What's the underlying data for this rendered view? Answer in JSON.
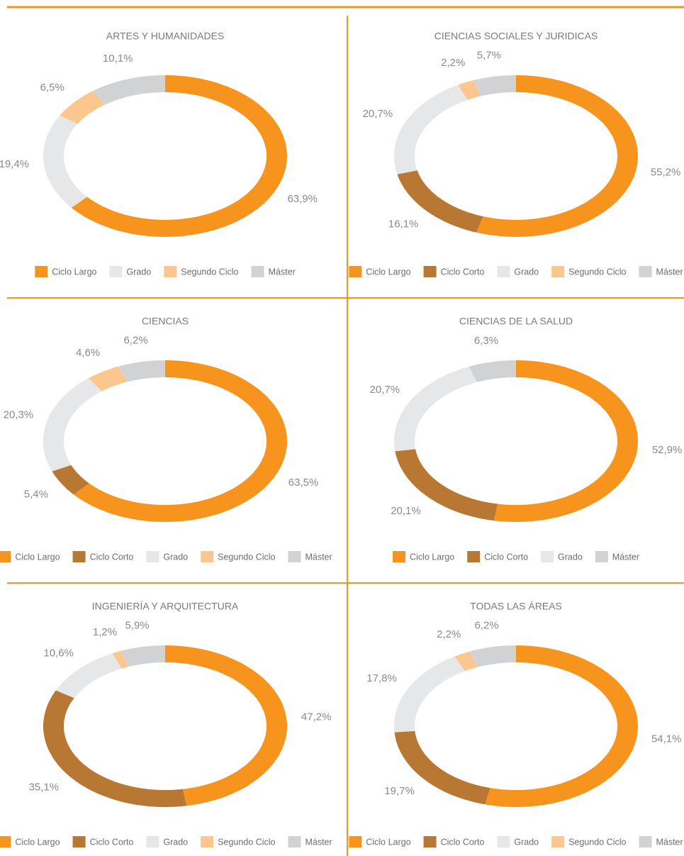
{
  "chart_data": [
    {
      "type": "pie",
      "title": "ARTES Y HUMANIDADES",
      "categories": [
        "Ciclo Largo",
        "Grado",
        "Segundo Ciclo",
        "Máster"
      ],
      "values": [
        63.9,
        19.4,
        6.5,
        10.1
      ],
      "value_labels": [
        "63,9%",
        "19,4%",
        "6,5%",
        "10,1%"
      ],
      "colors": [
        "#f7941d",
        "#e6e7e8",
        "#fcc78f",
        "#d1d2d4"
      ]
    },
    {
      "type": "pie",
      "title": "CIENCIAS SOCIALES Y JURIDICAS",
      "categories": [
        "Ciclo Largo",
        "Ciclo Corto",
        "Grado",
        "Segundo Ciclo",
        "Máster"
      ],
      "values": [
        55.2,
        16.1,
        20.7,
        2.2,
        5.7
      ],
      "value_labels": [
        "55,2%",
        "16,1%",
        "20,7%",
        "2,2%",
        "5,7%"
      ],
      "colors": [
        "#f7941d",
        "#b87733",
        "#e6e7e8",
        "#fcc78f",
        "#d1d2d4"
      ]
    },
    {
      "type": "pie",
      "title": "CIENCIAS",
      "categories": [
        "Ciclo Largo",
        "Ciclo Corto",
        "Grado",
        "Segundo Ciclo",
        "Máster"
      ],
      "values": [
        63.5,
        5.4,
        20.3,
        4.6,
        6.2
      ],
      "value_labels": [
        "63,5%",
        "5,4%",
        "20,3%",
        "4,6%",
        "6,2%"
      ],
      "colors": [
        "#f7941d",
        "#b87733",
        "#e6e7e8",
        "#fcc78f",
        "#d1d2d4"
      ]
    },
    {
      "type": "pie",
      "title": "CIENCIAS DE LA SALUD",
      "categories": [
        "Ciclo Largo",
        "Ciclo Corto",
        "Grado",
        "Máster"
      ],
      "values": [
        52.9,
        20.1,
        20.7,
        6.3
      ],
      "value_labels": [
        "52,9%",
        "20,1%",
        "20,7%",
        "6,3%"
      ],
      "colors": [
        "#f7941d",
        "#b87733",
        "#e6e7e8",
        "#d1d2d4"
      ]
    },
    {
      "type": "pie",
      "title": "INGENIERÍA Y ARQUITECTURA",
      "categories": [
        "Ciclo Largo",
        "Ciclo Corto",
        "Grado",
        "Segundo Ciclo",
        "Máster"
      ],
      "values": [
        47.2,
        35.1,
        10.6,
        1.2,
        5.9
      ],
      "value_labels": [
        "47,2%",
        "35,1%",
        "10,6%",
        "1,2%",
        "5,9%"
      ],
      "colors": [
        "#f7941d",
        "#b87733",
        "#e6e7e8",
        "#fcc78f",
        "#d1d2d4"
      ]
    },
    {
      "type": "pie",
      "title": "TODAS LAS ÁREAS",
      "categories": [
        "Ciclo Largo",
        "Ciclo Corto",
        "Grado",
        "Segundo Ciclo",
        "Máster"
      ],
      "values": [
        54.1,
        19.7,
        17.8,
        2.2,
        6.2
      ],
      "value_labels": [
        "54,1%",
        "19,7%",
        "17,8%",
        "2,2%",
        "6,2%"
      ],
      "colors": [
        "#f7941d",
        "#b87733",
        "#e6e7e8",
        "#fcc78f",
        "#d1d2d4"
      ]
    }
  ]
}
